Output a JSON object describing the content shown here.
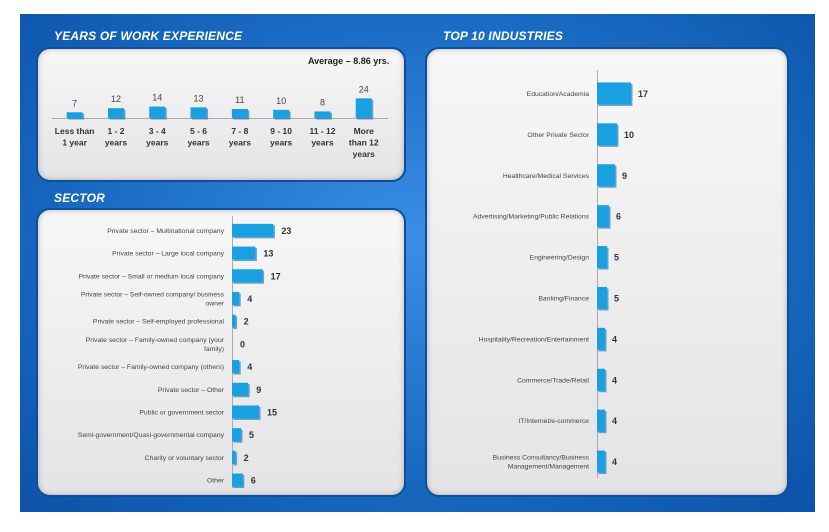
{
  "sections": {
    "experience_title": "YEARS OF WORK EXPERIENCE",
    "sector_title": "SECTOR",
    "industries_title": "TOP 10 INDUSTRIES",
    "average_label": "Average – 8.86 yrs."
  },
  "colors": {
    "bar": "#1aa0e0",
    "bar_shadow": "#0a6fa8",
    "frame": "#1a6cc4",
    "panel_border": "#0f4f9a"
  },
  "chart_data": [
    {
      "type": "bar",
      "title": "YEARS OF WORK EXPERIENCE",
      "categories": [
        [
          "Less than",
          "1 year"
        ],
        [
          "1 - 2",
          "years"
        ],
        [
          "3 - 4",
          "years"
        ],
        [
          "5 - 6",
          "years"
        ],
        [
          "7 - 8",
          "years"
        ],
        [
          "9 - 10",
          "years"
        ],
        [
          "11 - 12",
          "years"
        ],
        [
          "More",
          "than 12",
          "years"
        ]
      ],
      "values": [
        7,
        12,
        14,
        13,
        11,
        10,
        8,
        24
      ],
      "orientation": "vertical",
      "annotation": "Average – 8.86 yrs."
    },
    {
      "type": "bar",
      "title": "SECTOR",
      "orientation": "horizontal",
      "categories": [
        [
          "Private sector – Multinational company"
        ],
        [
          "Private sector – Large local company"
        ],
        [
          "Private sector – Small or medium local company"
        ],
        [
          "Private sector – Self-owned company/ business",
          "owner"
        ],
        [
          "Private sector – Self-employed  professional"
        ],
        [
          "Private sector – Family-owned company (your",
          "family)"
        ],
        [
          "Private sector – Family-owned company (others)"
        ],
        [
          "Private sector – Other"
        ],
        [
          "Public or government sector"
        ],
        [
          "Semi-government/Quasi-governmental company"
        ],
        [
          "Charity or voluntary sector"
        ],
        [
          "Other"
        ]
      ],
      "values": [
        23,
        13,
        17,
        4,
        2,
        0,
        4,
        9,
        15,
        5,
        2,
        6
      ]
    },
    {
      "type": "bar",
      "title": "TOP 10 INDUSTRIES",
      "orientation": "horizontal",
      "categories": [
        [
          "Education/Academia"
        ],
        [
          "Other Private Sector"
        ],
        [
          "Healthcare/Medical Services"
        ],
        [
          "Advertising/Marketing/Public Relations"
        ],
        [
          "Engineering/Design"
        ],
        [
          "Banking/Finance"
        ],
        [
          "Hospitality/Recreation/Entertainment"
        ],
        [
          "Commerce/Trade/Retail"
        ],
        [
          "IT/Internet/e-commerce"
        ],
        [
          "Business Consultancy/Business",
          "Management/Management"
        ]
      ],
      "values": [
        17,
        10,
        9,
        6,
        5,
        5,
        4,
        4,
        4,
        4
      ]
    }
  ]
}
